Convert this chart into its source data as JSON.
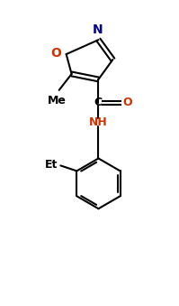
{
  "bg_color": "#ffffff",
  "line_color": "#000000",
  "label_color_N": "#00008b",
  "label_color_O": "#cc3300",
  "label_color_NH": "#cc3300",
  "label_color_default": "#000000",
  "fig_width": 1.99,
  "fig_height": 3.39,
  "dpi": 100,
  "xlim": [
    0,
    10
  ],
  "ylim": [
    0,
    17
  ]
}
